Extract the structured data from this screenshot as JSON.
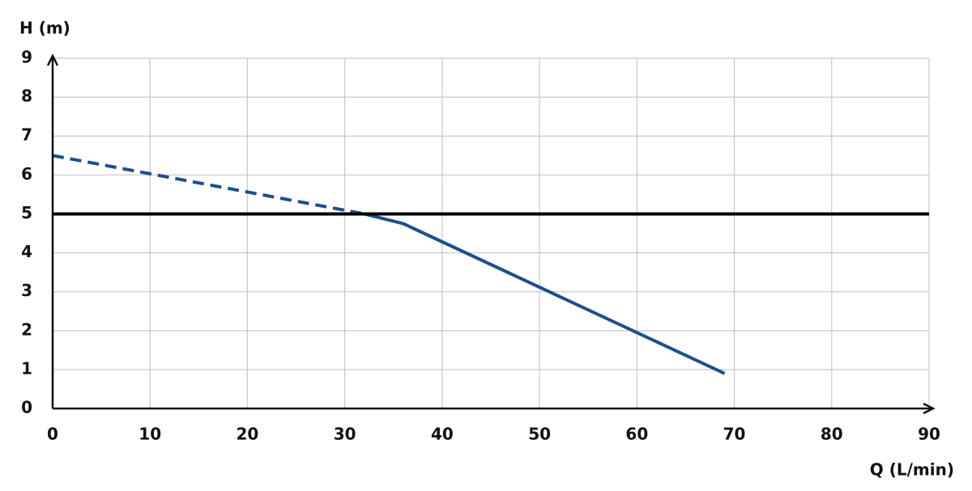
{
  "chart_data": {
    "type": "line",
    "x_label": "Q (L/min)",
    "y_label": "H (m)",
    "xlim": [
      0,
      90
    ],
    "xticks": [
      0,
      10,
      20,
      30,
      40,
      50,
      60,
      70,
      80,
      90
    ],
    "ylim": [
      0,
      9
    ],
    "yticks": [
      0,
      1,
      2,
      3,
      4,
      5,
      6,
      7,
      8,
      9
    ],
    "grid": true,
    "series": [
      {
        "color": "#1f4e8c",
        "dashed": true,
        "x": [
          0,
          32
        ],
        "values": [
          6.5,
          5.0
        ]
      },
      {
        "color": "#1f4e8c",
        "dashed": false,
        "x": [
          32,
          36,
          69
        ],
        "values": [
          5.0,
          4.75,
          0.9
        ]
      },
      {
        "color": "#000000",
        "dashed": false,
        "x": [
          0,
          90
        ],
        "values": [
          5,
          5
        ]
      }
    ]
  }
}
